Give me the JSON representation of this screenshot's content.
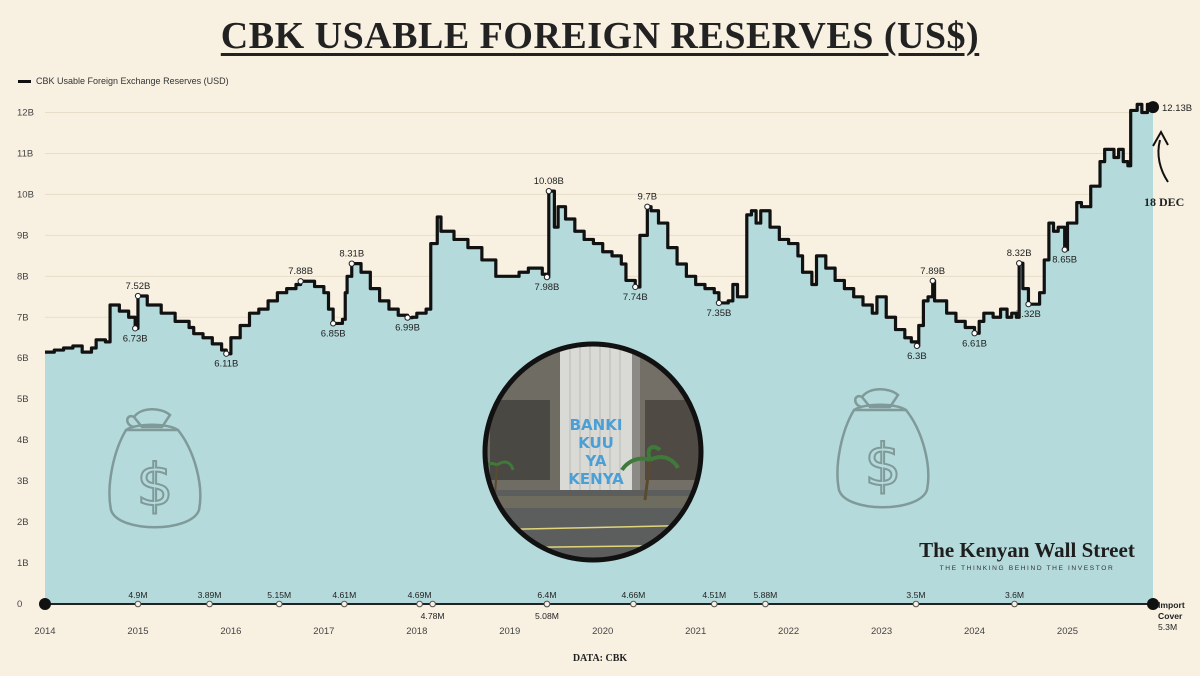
{
  "title": "CBK USABLE FOREIGN RESERVES (US$)",
  "legend_label": "CBK Usable Foreign Exchange Reserves (USD)",
  "source_text": "DATA: CBK",
  "brand": {
    "name": "The Kenyan Wall Street",
    "tagline": "THE THINKING BEHIND THE INVESTOR"
  },
  "building_sign": "BANKI KUU YA KENYA",
  "annotation": {
    "date_label": "18 DEC",
    "latest_label": "12.13B"
  },
  "import_cover": {
    "title_line1": "Import",
    "title_line2": "Cover",
    "latest": "5.3M"
  },
  "colors": {
    "area": "#b4dadb",
    "line": "#111111",
    "background": "#f8f1e2",
    "icon": "#7f9a98"
  },
  "icons": [
    "money-bag-icon",
    "money-bag-icon"
  ],
  "chart_data": {
    "type": "area",
    "series": [
      {
        "name": "CBK Usable Foreign Exchange Reserves (USD)"
      }
    ],
    "ylim": [
      0,
      12.5
    ],
    "y_ticks": [
      "0",
      "1B",
      "2B",
      "3B",
      "4B",
      "5B",
      "6B",
      "7B",
      "8B",
      "9B",
      "10B",
      "11B",
      "12B"
    ],
    "y_tick_values": [
      0,
      1,
      2,
      3,
      4,
      5,
      6,
      7,
      8,
      9,
      10,
      11,
      12
    ],
    "xlim": [
      2014.0,
      2025.92
    ],
    "x_ticks": [
      "2014",
      "2015",
      "2016",
      "2017",
      "2018",
      "2019",
      "2020",
      "2021",
      "2022",
      "2023",
      "2024",
      "2025"
    ],
    "x_tick_values": [
      2014,
      2015,
      2016,
      2017,
      2018,
      2019,
      2020,
      2021,
      2022,
      2023,
      2024,
      2025
    ],
    "points": [
      [
        2014.0,
        6.15
      ],
      [
        2014.1,
        6.2
      ],
      [
        2014.2,
        6.25
      ],
      [
        2014.3,
        6.3
      ],
      [
        2014.4,
        6.15
      ],
      [
        2014.5,
        6.25
      ],
      [
        2014.55,
        6.45
      ],
      [
        2014.65,
        6.4
      ],
      [
        2014.7,
        7.3
      ],
      [
        2014.8,
        7.15
      ],
      [
        2014.9,
        7.0
      ],
      [
        2014.97,
        6.73
      ],
      [
        2015.0,
        7.52
      ],
      [
        2015.1,
        7.3
      ],
      [
        2015.25,
        7.1
      ],
      [
        2015.4,
        6.9
      ],
      [
        2015.55,
        6.75
      ],
      [
        2015.6,
        6.6
      ],
      [
        2015.7,
        6.5
      ],
      [
        2015.8,
        6.35
      ],
      [
        2015.9,
        6.2
      ],
      [
        2015.95,
        6.11
      ],
      [
        2016.0,
        6.5
      ],
      [
        2016.1,
        6.8
      ],
      [
        2016.2,
        7.1
      ],
      [
        2016.3,
        7.2
      ],
      [
        2016.4,
        7.4
      ],
      [
        2016.5,
        7.6
      ],
      [
        2016.6,
        7.7
      ],
      [
        2016.7,
        7.8
      ],
      [
        2016.75,
        7.88
      ],
      [
        2016.9,
        7.75
      ],
      [
        2017.0,
        7.6
      ],
      [
        2017.05,
        7.2
      ],
      [
        2017.1,
        6.85
      ],
      [
        2017.2,
        6.95
      ],
      [
        2017.23,
        7.6
      ],
      [
        2017.25,
        8.0
      ],
      [
        2017.3,
        8.31
      ],
      [
        2017.4,
        8.1
      ],
      [
        2017.5,
        7.7
      ],
      [
        2017.6,
        7.4
      ],
      [
        2017.7,
        7.2
      ],
      [
        2017.8,
        7.05
      ],
      [
        2017.9,
        6.99
      ],
      [
        2017.95,
        7.0
      ],
      [
        2018.0,
        7.1
      ],
      [
        2018.1,
        7.2
      ],
      [
        2018.15,
        8.8
      ],
      [
        2018.22,
        9.45
      ],
      [
        2018.26,
        9.1
      ],
      [
        2018.4,
        8.9
      ],
      [
        2018.55,
        8.7
      ],
      [
        2018.7,
        8.4
      ],
      [
        2018.85,
        8.0
      ],
      [
        2019.0,
        8.0
      ],
      [
        2019.1,
        8.1
      ],
      [
        2019.2,
        8.2
      ],
      [
        2019.3,
        8.2
      ],
      [
        2019.35,
        8.05
      ],
      [
        2019.4,
        7.98
      ],
      [
        2019.42,
        10.08
      ],
      [
        2019.48,
        9.2
      ],
      [
        2019.52,
        9.7
      ],
      [
        2019.6,
        9.4
      ],
      [
        2019.7,
        9.1
      ],
      [
        2019.8,
        8.9
      ],
      [
        2019.9,
        8.8
      ],
      [
        2020.0,
        8.6
      ],
      [
        2020.1,
        8.5
      ],
      [
        2020.2,
        8.3
      ],
      [
        2020.25,
        7.9
      ],
      [
        2020.35,
        7.74
      ],
      [
        2020.4,
        9.0
      ],
      [
        2020.48,
        9.7
      ],
      [
        2020.52,
        9.6
      ],
      [
        2020.6,
        9.3
      ],
      [
        2020.7,
        8.7
      ],
      [
        2020.8,
        8.3
      ],
      [
        2020.9,
        8.0
      ],
      [
        2021.0,
        7.8
      ],
      [
        2021.1,
        7.7
      ],
      [
        2021.2,
        7.6
      ],
      [
        2021.25,
        7.35
      ],
      [
        2021.35,
        7.4
      ],
      [
        2021.4,
        7.8
      ],
      [
        2021.45,
        7.5
      ],
      [
        2021.5,
        7.5
      ],
      [
        2021.55,
        9.5
      ],
      [
        2021.6,
        9.6
      ],
      [
        2021.65,
        9.3
      ],
      [
        2021.7,
        9.6
      ],
      [
        2021.8,
        9.2
      ],
      [
        2021.9,
        8.9
      ],
      [
        2022.0,
        8.8
      ],
      [
        2022.1,
        8.5
      ],
      [
        2022.15,
        8.1
      ],
      [
        2022.25,
        7.8
      ],
      [
        2022.3,
        8.5
      ],
      [
        2022.4,
        8.2
      ],
      [
        2022.5,
        7.9
      ],
      [
        2022.6,
        7.7
      ],
      [
        2022.7,
        7.5
      ],
      [
        2022.8,
        7.3
      ],
      [
        2022.9,
        7.1
      ],
      [
        2022.95,
        7.5
      ],
      [
        2023.05,
        7.0
      ],
      [
        2023.15,
        6.7
      ],
      [
        2023.25,
        6.5
      ],
      [
        2023.32,
        6.4
      ],
      [
        2023.38,
        6.3
      ],
      [
        2023.4,
        6.8
      ],
      [
        2023.45,
        7.4
      ],
      [
        2023.5,
        7.5
      ],
      [
        2023.55,
        7.89
      ],
      [
        2023.57,
        7.4
      ],
      [
        2023.7,
        7.1
      ],
      [
        2023.8,
        6.9
      ],
      [
        2023.9,
        6.75
      ],
      [
        2024.0,
        6.61
      ],
      [
        2024.05,
        6.9
      ],
      [
        2024.1,
        7.1
      ],
      [
        2024.2,
        7.0
      ],
      [
        2024.28,
        7.2
      ],
      [
        2024.35,
        7.0
      ],
      [
        2024.4,
        7.1
      ],
      [
        2024.45,
        7.0
      ],
      [
        2024.48,
        8.32
      ],
      [
        2024.52,
        7.7
      ],
      [
        2024.58,
        7.32
      ],
      [
        2024.7,
        7.6
      ],
      [
        2024.75,
        8.4
      ],
      [
        2024.8,
        9.3
      ],
      [
        2024.85,
        9.1
      ],
      [
        2024.9,
        9.2
      ],
      [
        2024.97,
        8.65
      ],
      [
        2025.0,
        9.3
      ],
      [
        2025.1,
        9.8
      ],
      [
        2025.15,
        9.7
      ],
      [
        2025.25,
        10.2
      ],
      [
        2025.35,
        10.8
      ],
      [
        2025.4,
        11.1
      ],
      [
        2025.5,
        10.9
      ],
      [
        2025.55,
        11.1
      ],
      [
        2025.6,
        10.8
      ],
      [
        2025.65,
        10.7
      ],
      [
        2025.68,
        12.05
      ],
      [
        2025.75,
        12.2
      ],
      [
        2025.8,
        12.0
      ],
      [
        2025.86,
        12.2
      ],
      [
        2025.92,
        12.13
      ]
    ],
    "value_labels": [
      {
        "x": 2015.0,
        "y": 7.52,
        "text": "7.52B",
        "pos": "above"
      },
      {
        "x": 2014.97,
        "y": 6.73,
        "text": "6.73B",
        "pos": "below"
      },
      {
        "x": 2015.95,
        "y": 6.11,
        "text": "6.11B",
        "pos": "below"
      },
      {
        "x": 2016.75,
        "y": 7.88,
        "text": "7.88B",
        "pos": "above"
      },
      {
        "x": 2017.1,
        "y": 6.85,
        "text": "6.85B",
        "pos": "below"
      },
      {
        "x": 2017.3,
        "y": 8.31,
        "text": "8.31B",
        "pos": "above"
      },
      {
        "x": 2017.9,
        "y": 6.99,
        "text": "6.99B",
        "pos": "below"
      },
      {
        "x": 2019.42,
        "y": 10.08,
        "text": "10.08B",
        "pos": "above"
      },
      {
        "x": 2019.4,
        "y": 7.98,
        "text": "7.98B",
        "pos": "below"
      },
      {
        "x": 2020.48,
        "y": 9.7,
        "text": "9.7B",
        "pos": "above"
      },
      {
        "x": 2020.35,
        "y": 7.74,
        "text": "7.74B",
        "pos": "below"
      },
      {
        "x": 2021.25,
        "y": 7.35,
        "text": "7.35B",
        "pos": "below"
      },
      {
        "x": 2023.38,
        "y": 6.3,
        "text": "6.3B",
        "pos": "below"
      },
      {
        "x": 2023.55,
        "y": 7.89,
        "text": "7.89B",
        "pos": "above"
      },
      {
        "x": 2024.0,
        "y": 6.61,
        "text": "6.61B",
        "pos": "below"
      },
      {
        "x": 2024.48,
        "y": 8.32,
        "text": "8.32B",
        "pos": "above"
      },
      {
        "x": 2024.58,
        "y": 7.32,
        "text": "7.32B",
        "pos": "below"
      },
      {
        "x": 2024.97,
        "y": 8.65,
        "text": "8.65B",
        "pos": "below"
      }
    ],
    "import_cover_points": [
      {
        "x": 2015.0,
        "text": "4.9M",
        "pos": "above"
      },
      {
        "x": 2015.77,
        "text": "3.89M",
        "pos": "above"
      },
      {
        "x": 2016.52,
        "text": "5.15M",
        "pos": "above"
      },
      {
        "x": 2017.22,
        "text": "4.61M",
        "pos": "above"
      },
      {
        "x": 2018.03,
        "text": "4.69M",
        "pos": "above"
      },
      {
        "x": 2018.17,
        "text": "4.78M",
        "pos": "below"
      },
      {
        "x": 2019.4,
        "text": "6.4M",
        "pos": "above"
      },
      {
        "x": 2019.4,
        "text": "5.08M",
        "pos": "below"
      },
      {
        "x": 2020.33,
        "text": "4.66M",
        "pos": "above"
      },
      {
        "x": 2021.2,
        "text": "4.51M",
        "pos": "above"
      },
      {
        "x": 2021.75,
        "text": "5.88M",
        "pos": "above"
      },
      {
        "x": 2023.37,
        "text": "3.5M",
        "pos": "above"
      },
      {
        "x": 2024.43,
        "text": "3.6M",
        "pos": "above"
      }
    ]
  }
}
